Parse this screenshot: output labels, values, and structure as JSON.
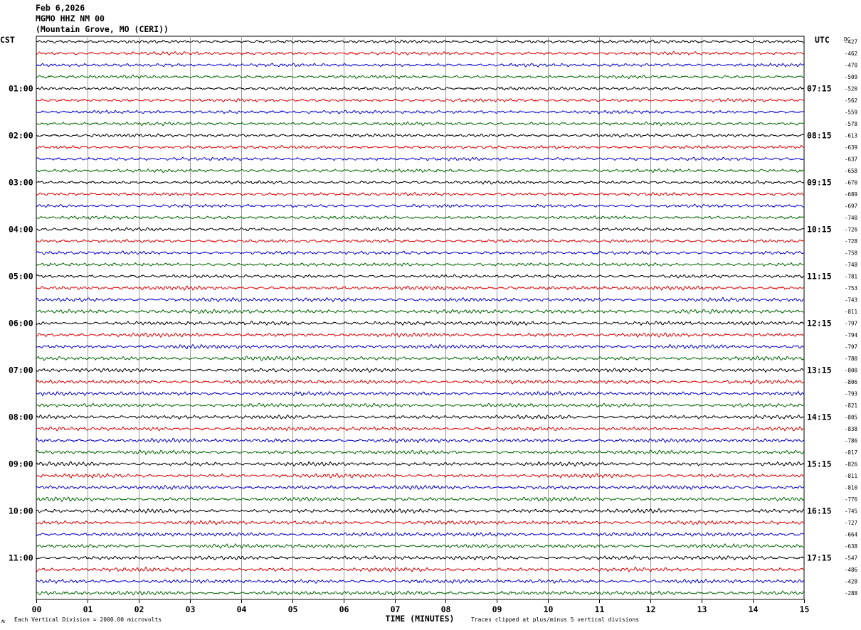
{
  "header": {
    "date": "Feb 6,2026",
    "station": "MGMO HHZ NM 00",
    "location": "(Mountain Grove, MO (CERI))"
  },
  "left_tz": "CST",
  "right_tz": "UTC",
  "dc_label": "DC",
  "footer": {
    "corner": "ʍ",
    "scale_note": "Each Vertical Division = 2000.00 microvolts",
    "xaxis_title": "TIME (MINUTES)",
    "clip_note": "Traces clipped at plus/minus 5 vertical divisions"
  },
  "chart_data": {
    "type": "line",
    "title": "MGMO HHZ NM 00",
    "xlabel": "TIME (MINUTES)",
    "x_ticks": [
      "00",
      "01",
      "02",
      "03",
      "04",
      "05",
      "06",
      "07",
      "08",
      "09",
      "10",
      "11",
      "12",
      "13",
      "14",
      "15"
    ],
    "xlim": [
      0,
      15
    ],
    "grid": true,
    "row_colors": [
      "#000000",
      "#dd0000",
      "#0000cc",
      "#006600"
    ],
    "left_hour_labels": [
      "01:00",
      "02:00",
      "03:00",
      "04:00",
      "05:00",
      "06:00",
      "07:00",
      "08:00",
      "09:00",
      "10:00",
      "11:00"
    ],
    "right_hour_labels": [
      "07:15",
      "08:15",
      "09:15",
      "10:15",
      "11:15",
      "12:15",
      "13:15",
      "14:15",
      "15:15",
      "16:15",
      "17:15"
    ],
    "dc_offsets": [
      "-427",
      "-462",
      "-470",
      "-509",
      "-520",
      "-562",
      "-559",
      "-578",
      "-613",
      "-639",
      "-637",
      "-658",
      "-670",
      "-689",
      "-697",
      "-740",
      "-726",
      "-728",
      "-758",
      "-748",
      "-781",
      "-753",
      "-743",
      "-811",
      "-797",
      "-794",
      "-797",
      "-780",
      "-800",
      "-806",
      "-793",
      "-821",
      "-805",
      "-838",
      "-786",
      "-817",
      "-826",
      "-811",
      "-810",
      "-776",
      "-745",
      "-727",
      "-664",
      "-638",
      "-547",
      "-486",
      "-428",
      "-288"
    ]
  }
}
